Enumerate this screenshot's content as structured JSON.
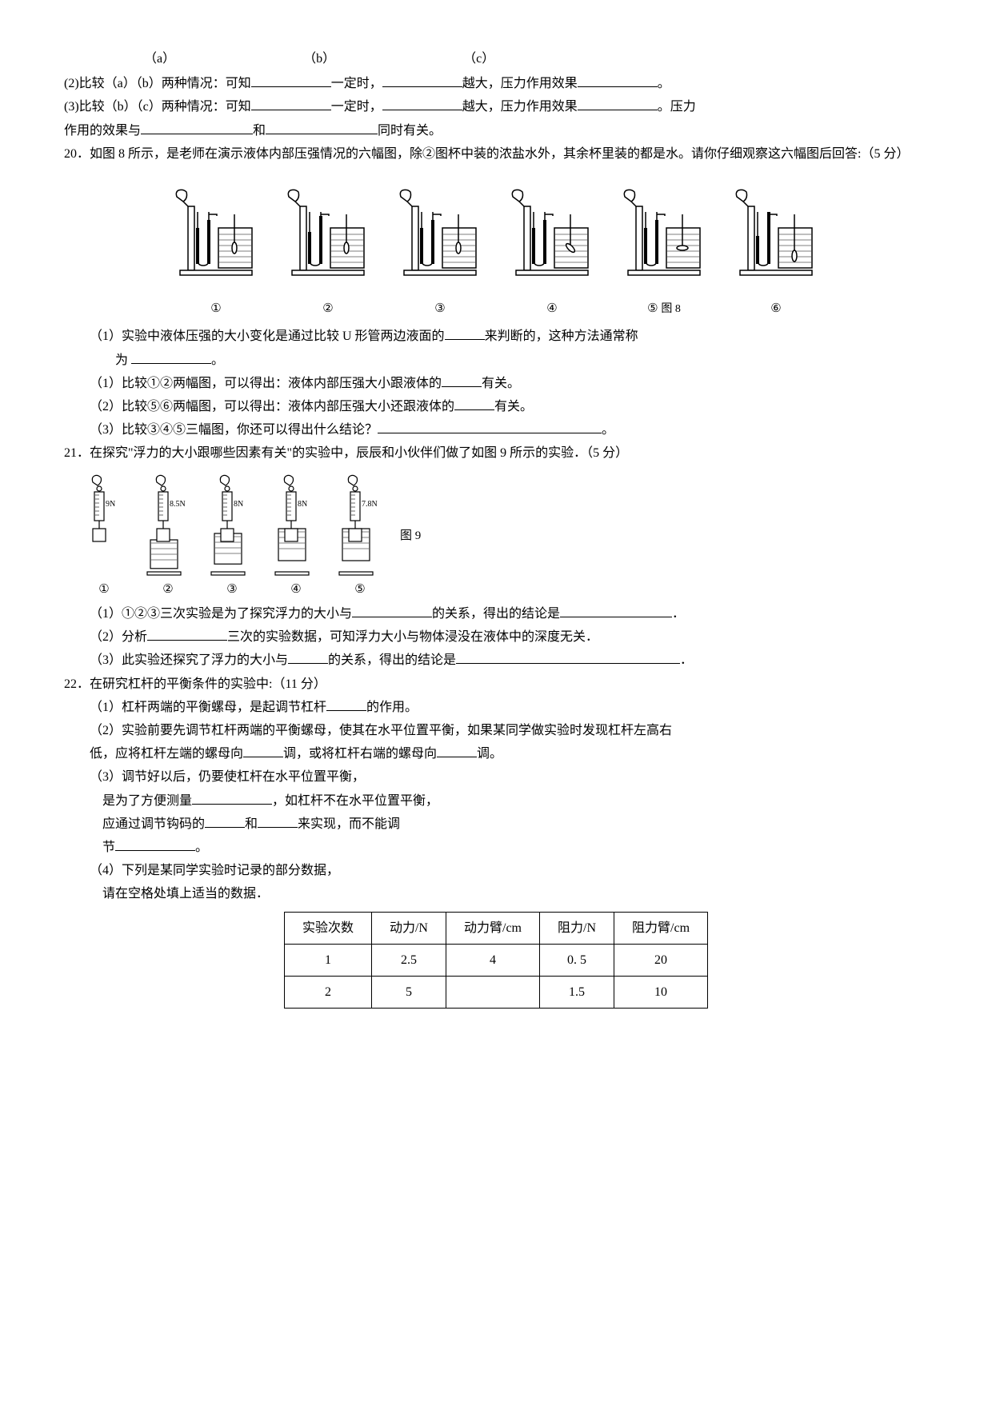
{
  "abc": {
    "a": "（a）",
    "b": "（b）",
    "c": "（c）"
  },
  "q19": {
    "l2": "(2)比较（a）（b）两种情况：可知",
    "l2b": "一定时，",
    "l2c": "越大，压力作用效果",
    "l2d": "。",
    "l3": "(3)比较（b）（c）两种情况：可知",
    "l3b": "一定时，",
    "l3c": "越大，压力作用效果",
    "l3d": "。压力",
    "l4a": "作用的效果与",
    "l4b": "和",
    "l4c": "同时有关。"
  },
  "q20": {
    "head": "20．如图 8 所示，是老师在演示液体内部压强情况的六幅图，除②图杯中装的浓盐水外，其余杯里装的都是水。请你仔细观察这六幅图后回答:（5 分）",
    "labels": [
      "①",
      "②",
      "③",
      "④",
      "⑤",
      "⑥"
    ],
    "caption": "图 8",
    "p1a": "（1）实验中液体压强的大小变化是通过比较 U 形管两边液面的",
    "p1b": "来判断的，这种方法通常称",
    "p1c": "为",
    "p1d": "。",
    "p2a": "（1）比较①②两幅图，可以得出：液体内部压强大小跟液体的",
    "p2b": "有关。",
    "p3a": "（2）比较⑤⑥两幅图，可以得出：液体内部压强大小还跟液体的",
    "p3b": "有关。",
    "p4a": "（3）比较③④⑤三幅图，你还可以得出什么结论？",
    "p4b": "。"
  },
  "q21": {
    "head": "21．在探究\"浮力的大小跟哪些因素有关\"的实验中，辰辰和小伙伴们做了如图 9 所示的实验．（5 分）",
    "readings": [
      "9N",
      "8.5N",
      "8N",
      "8N",
      "7.8N"
    ],
    "labels": [
      "①",
      "②",
      "③",
      "④",
      "⑤"
    ],
    "caption": "图 9",
    "p1a": "（1）①②③三次实验是为了探究浮力的大小与",
    "p1b": "的关系，得出的结论是",
    "p1c": "．",
    "p2a": "（2）分析",
    "p2b": "三次的实验数据，可知浮力大小与物体浸没在液体中的深度无关．",
    "p3a": "（3）此实验还探究了浮力的大小与",
    "p3b": "的关系，得出的结论是",
    "p3c": "．"
  },
  "q22": {
    "head": "22．在研究杠杆的平衡条件的实验中:（11 分）",
    "p1a": "（1）杠杆两端的平衡螺母，是起调节杠杆",
    "p1b": "的作用。",
    "p2a": "（2）实验前要先调节杠杆两端的平衡螺母，使其在水平位置平衡，如果某同学做实验时发现杠杆左高右",
    "p2b": "低，应将杠杆左端的螺母向",
    "p2c": "调，或将杠杆右端的螺母向",
    "p2d": "调。",
    "p3a": "（3）调节好以后，仍要使杠杆在水平位置平衡，",
    "p3b": "是为了方便测量",
    "p3c": "，如杠杆不在水平位置平衡，",
    "p3d": "应通过调节钩码的",
    "p3e": "和",
    "p3f": "来实现，而不能调",
    "p3g": "节",
    "p3h": "。",
    "p4": "（4）下列是某同学实验时记录的部分数据，",
    "p4b": "请在空格处填上适当的数据．"
  },
  "table": {
    "headers": [
      "实验次数",
      "动力/N",
      "动力臂/cm",
      "阻力/N",
      "阻力臂/cm"
    ],
    "rows": [
      [
        "1",
        "2.5",
        "4",
        "0. 5",
        "20"
      ],
      [
        "2",
        "5",
        "",
        "1.5",
        "10"
      ]
    ]
  },
  "style": {
    "stroke": "#000000",
    "fill_none": "none",
    "hatch": "#000000"
  }
}
